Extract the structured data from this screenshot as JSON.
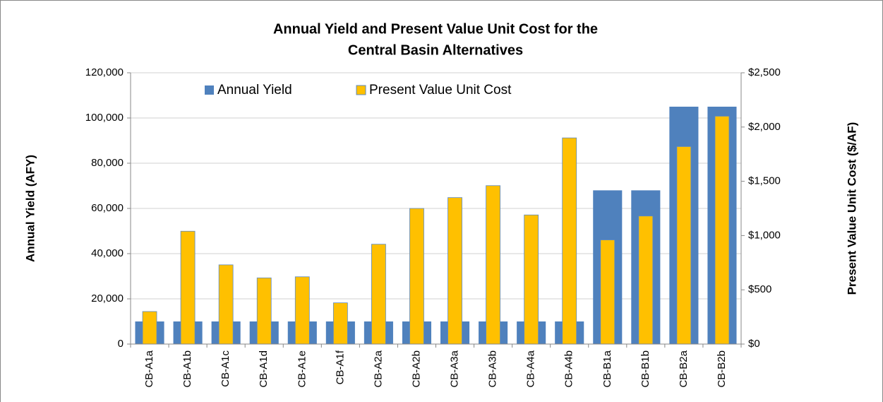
{
  "chart_data": {
    "type": "bar",
    "title": [
      "Annual Yield and Present Value Unit Cost for the",
      "Central Basin Alternatives"
    ],
    "y_label": "Annual Yield (AFY)",
    "y2_label": "Present Value Unit Cost ($/AF)",
    "categories": [
      "CB-A1a",
      "CB-A1b",
      "CB-A1c",
      "CB-A1d",
      "CB-A1e",
      "CB-A1f",
      "CB-A2a",
      "CB-A2b",
      "CB-A3a",
      "CB-A3b",
      "CB-A4a",
      "CB-A4b",
      "CB-B1a",
      "CB-B1b",
      "CB-B2a",
      "CB-B2b"
    ],
    "series": [
      {
        "name": "Annual Yield",
        "color": "#4f81bd",
        "values": [
          10000,
          10000,
          10000,
          10000,
          10000,
          10000,
          10000,
          10000,
          10000,
          10000,
          10000,
          10000,
          68000,
          68000,
          105000,
          105000
        ]
      },
      {
        "name": "Present Value Unit Cost",
        "color": "#ffc000",
        "axis": "y2",
        "values": [
          300,
          1040,
          730,
          610,
          620,
          380,
          920,
          1250,
          1350,
          1460,
          1190,
          1900,
          960,
          1180,
          1820,
          2100
        ]
      }
    ],
    "ylim": [
      0,
      120000
    ],
    "yticks": [
      0,
      {
        "value": 20000,
        "label": "20,000"
      },
      {
        "value": 40000,
        "label": "40,000"
      },
      {
        "value": 60000,
        "label": "60,000"
      },
      {
        "value": 80000,
        "label": "80,000"
      },
      {
        "value": 100000,
        "label": "100,000"
      },
      {
        "value": 120000,
        "label": "120,000"
      }
    ],
    "y2lim": [
      0,
      2500
    ],
    "y2ticks": [
      {
        "value": 0,
        "label": "$0"
      },
      {
        "value": 500,
        "label": "$500"
      },
      {
        "value": 1000,
        "label": "$1,000"
      },
      {
        "value": 1500,
        "label": "$1,500"
      },
      {
        "value": 2000,
        "label": "$2,000"
      },
      {
        "value": 2500,
        "label": "$2,500"
      }
    ],
    "grid": true,
    "legend": "top"
  }
}
